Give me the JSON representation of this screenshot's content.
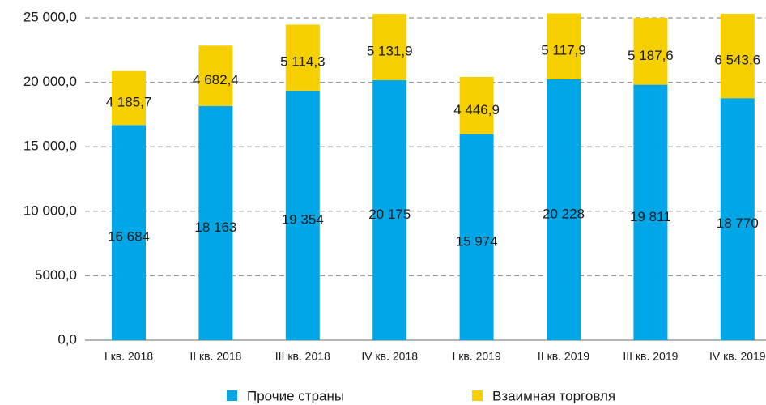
{
  "chart_data": {
    "type": "bar",
    "stacked": true,
    "categories": [
      "I кв. 2018",
      "II кв. 2018",
      "III кв. 2018",
      "IV кв. 2018",
      "I кв. 2019",
      "II кв. 2019",
      "III кв. 2019",
      "IV кв. 2019"
    ],
    "series": [
      {
        "name": "Прочие страны",
        "color": "#00a6e6",
        "values": [
          16684,
          18163,
          19354,
          20175,
          15974,
          20228,
          19811,
          18770
        ],
        "value_labels": [
          "16 684",
          "18 163",
          "19 354",
          "20 175",
          "15 974",
          "20 228",
          "19 811",
          "18 770"
        ]
      },
      {
        "name": "Взаимная торговля",
        "color": "#f5cf00",
        "values": [
          4185.7,
          4682.4,
          5114.3,
          5131.9,
          4446.9,
          5117.9,
          5187.6,
          6543.6
        ],
        "value_labels": [
          "4 185,7",
          "4 682,4",
          "5 114,3",
          "5 131,9",
          "4 446,9",
          "5 117,9",
          "5 187,6",
          "6 543,6"
        ]
      }
    ],
    "ylim": [
      0,
      25000
    ],
    "yticks": [
      {
        "value": 0,
        "label": "0,0"
      },
      {
        "value": 5000,
        "label": "5000,0"
      },
      {
        "value": 10000,
        "label": "10 000,0"
      },
      {
        "value": 15000,
        "label": "15 000,0"
      },
      {
        "value": 20000,
        "label": "20 000,0"
      },
      {
        "value": 25000,
        "label": "25 000,0"
      }
    ],
    "grid": true,
    "legend": "bottom"
  }
}
